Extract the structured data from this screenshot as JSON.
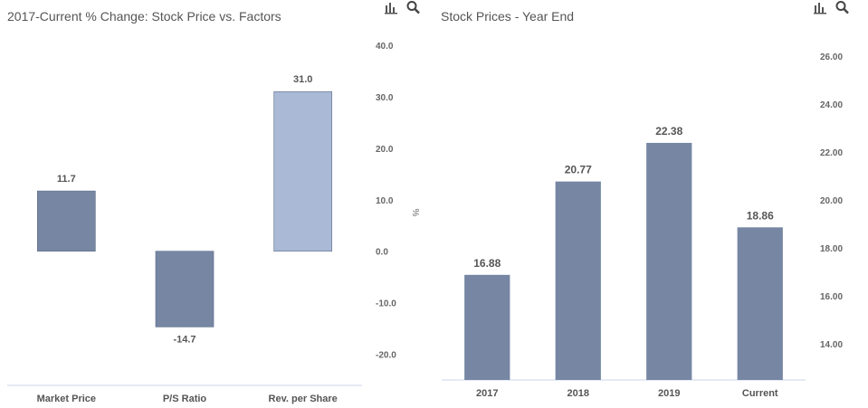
{
  "charts": {
    "left": {
      "title": "2017-Current % Change: Stock Price vs. Factors",
      "icons": [
        "bar-chart-icon",
        "search-icon"
      ]
    },
    "right": {
      "title": "Stock Prices - Year End",
      "icons": [
        "bar-chart-icon",
        "search-icon"
      ]
    }
  },
  "chart_data": [
    {
      "type": "bar",
      "title": "2017-Current % Change: Stock Price vs. Factors",
      "categories": [
        "Market Price",
        "P/S Ratio",
        "Rev. per Share"
      ],
      "values": [
        11.7,
        -14.7,
        31.0
      ],
      "value_labels": [
        "11.7",
        "-14.7",
        "31.0"
      ],
      "colors": [
        "#7686a3",
        "#7686a3",
        "#a9b9d6"
      ],
      "ylabel": "%",
      "ylim": [
        -25,
        40
      ],
      "yticks": [
        40,
        30,
        20,
        10,
        0,
        -10,
        -20
      ],
      "ytick_labels": [
        "40.0",
        "30.0",
        "20.0",
        "10.0",
        "0.0",
        "-10.0",
        "-20.0"
      ],
      "y_axis_side": "right",
      "grid": false
    },
    {
      "type": "bar",
      "title": "Stock Prices - Year End",
      "categories": [
        "2017",
        "2018",
        "2019",
        "Current"
      ],
      "values": [
        16.88,
        20.77,
        22.38,
        18.86
      ],
      "value_labels": [
        "16.88",
        "20.77",
        "22.38",
        "18.86"
      ],
      "color": "#7686a3",
      "ylim": [
        12.5,
        26.6
      ],
      "yticks": [
        26,
        24,
        22,
        20,
        18,
        16,
        14
      ],
      "ytick_labels": [
        "26.00",
        "24.00",
        "22.00",
        "20.00",
        "18.00",
        "16.00",
        "14.00"
      ],
      "y_axis_side": "right",
      "grid": false
    }
  ]
}
